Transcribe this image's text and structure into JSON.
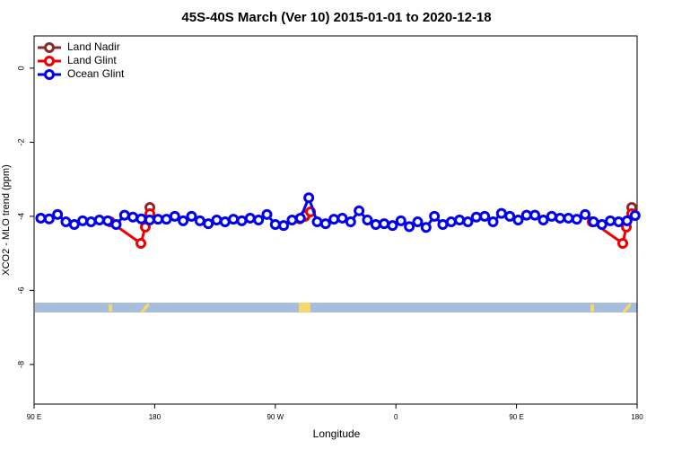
{
  "chart_data": {
    "type": "line",
    "title": "45S-40S March (Ver 10)   2015-01-01 to 2020-12-18",
    "xlabel": "Longitude",
    "ylabel": "XCO2 - MLO trend (ppm)",
    "xlim": [
      90,
      540
    ],
    "ylim": [
      -9.07,
      0.87
    ],
    "xticks": [
      {
        "value": 90,
        "label": "90 E"
      },
      {
        "value": 180,
        "label": "180"
      },
      {
        "value": 270,
        "label": "90 W"
      },
      {
        "value": 360,
        "label": "0"
      },
      {
        "value": 450,
        "label": "90 E"
      },
      {
        "value": 540,
        "label": "180"
      }
    ],
    "yticks": [
      0,
      -2,
      -4,
      -6,
      -8
    ],
    "legend": "top-left",
    "series": [
      {
        "name": "Land Nadir",
        "color": "#8b2a2a",
        "x": [
          176.4,
          null,
          292.2,
          null,
          536
        ],
        "values": [
          -3.76,
          null,
          -4.0,
          null,
          -3.76
        ]
      },
      {
        "name": "Land Glint",
        "color": "#ee0000",
        "x": [
          146.9,
          169.7,
          173,
          176.4,
          null,
          288.2,
          292.2,
          296.3,
          null,
          506.5,
          529.3,
          532,
          536
        ],
        "values": [
          -4.15,
          -4.73,
          -4.29,
          -3.93,
          null,
          -4.07,
          -3.98,
          -3.88,
          null,
          -4.15,
          -4.73,
          -4.29,
          -3.93
        ]
      },
      {
        "name": "Ocean Glint",
        "color": "#0000ee",
        "x": [
          95,
          101.25,
          107.5,
          113.75,
          120,
          126.25,
          132.5,
          138.75,
          145,
          151.25,
          157.5,
          163.75,
          170,
          176.25,
          182.5,
          188.75,
          195,
          201.25,
          207.5,
          213.75,
          220,
          226.25,
          232.5,
          238.75,
          245,
          251.25,
          257.5,
          263.75,
          270,
          276.25,
          282.5,
          288.75,
          295,
          301.25,
          307.5,
          313.75,
          320,
          326.25,
          332.5,
          338.75,
          345,
          351.25,
          357.5,
          363.75,
          370,
          376.25,
          382.5,
          388.75,
          395,
          401.25,
          407.5,
          413.75,
          420,
          426.25,
          432.5,
          438.75,
          445,
          451.25,
          457.5,
          463.75,
          470,
          476.25,
          482.5,
          488.75,
          495,
          501.25,
          507.5,
          513.75,
          520,
          526.25,
          532.5,
          538.5
        ],
        "values": [
          -4.05,
          -4.07,
          -3.95,
          -4.15,
          -4.22,
          -4.12,
          -4.15,
          -4.1,
          -4.12,
          -4.22,
          -3.97,
          -4.02,
          -4.07,
          -4.1,
          -4.08,
          -4.08,
          -4.0,
          -4.12,
          -4.0,
          -4.12,
          -4.2,
          -4.1,
          -4.15,
          -4.08,
          -4.12,
          -4.05,
          -4.1,
          -3.95,
          -4.22,
          -4.25,
          -4.1,
          -4.05,
          -3.5,
          -4.15,
          -4.2,
          -4.08,
          -4.05,
          -4.15,
          -3.85,
          -4.1,
          -4.22,
          -4.2,
          -4.25,
          -4.12,
          -4.28,
          -4.15,
          -4.3,
          -4.0,
          -4.22,
          -4.15,
          -4.1,
          -4.15,
          -4.02,
          -4.0,
          -4.15,
          -3.92,
          -4.0,
          -4.1,
          -3.97,
          -3.97,
          -4.1,
          -4.0,
          -4.05,
          -4.05,
          -4.08,
          -3.95,
          -4.15,
          -4.22,
          -4.12,
          -4.15,
          -4.12,
          -3.98
        ]
      }
    ]
  }
}
